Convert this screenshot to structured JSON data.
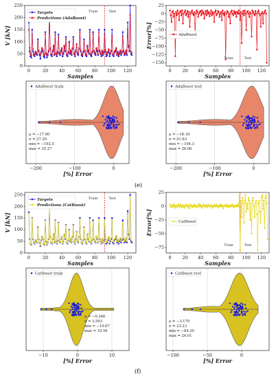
{
  "panel_labels": {
    "e": "(e)",
    "f": "(f)"
  },
  "chart_data": [
    {
      "id": "e_ts",
      "type": "line",
      "xlabel": "Samples",
      "ylabel": "V [kN]",
      "xlim": [
        -5,
        130
      ],
      "ylim": [
        0,
        250
      ],
      "xticks": [
        0,
        20,
        40,
        60,
        80,
        100,
        120
      ],
      "yticks": [
        0,
        50,
        100,
        150,
        200,
        250
      ],
      "legend": [
        "Targets",
        "Predictions (AdaBoost)"
      ],
      "legend_placement": "top-left",
      "split_x": 92,
      "annotations": [
        "Train",
        "Test"
      ],
      "series": [
        {
          "name": "Targets",
          "color": "#1f1fd8",
          "marker": "square",
          "values": [
            180,
            60,
            40,
            35,
            150,
            60,
            45,
            40,
            55,
            50,
            45,
            110,
            60,
            45,
            30,
            55,
            70,
            60,
            40,
            35,
            140,
            50,
            35,
            45,
            60,
            215,
            70,
            45,
            40,
            60,
            80,
            45,
            140,
            50,
            40,
            55,
            130,
            50,
            45,
            60,
            70,
            40,
            50,
            80,
            60,
            120,
            45,
            40,
            55,
            100,
            50,
            60,
            45,
            70,
            120,
            50,
            40,
            60,
            90,
            50,
            45,
            70,
            150,
            60,
            45,
            40,
            55,
            110,
            60,
            45,
            40,
            80,
            60,
            50,
            150,
            45,
            40,
            55,
            140,
            60,
            50,
            45,
            70,
            60,
            45,
            150,
            60,
            50,
            40,
            60,
            45,
            55,
            150,
            60,
            40,
            45,
            55,
            65,
            40,
            50,
            60,
            150,
            45,
            40,
            55,
            60,
            70,
            45,
            55,
            40,
            50,
            60,
            45,
            55,
            140,
            60,
            45,
            50,
            60,
            45,
            180,
            80,
            60,
            260,
            50,
            45
          ]
        },
        {
          "name": "Predictions (AdaBoost)",
          "color": "#e8141d",
          "marker": "circle",
          "values": [
            150,
            75,
            50,
            45,
            130,
            70,
            50,
            45,
            60,
            55,
            50,
            100,
            65,
            50,
            45,
            60,
            75,
            65,
            50,
            45,
            130,
            55,
            45,
            50,
            65,
            200,
            75,
            50,
            45,
            65,
            85,
            50,
            130,
            55,
            45,
            60,
            120,
            55,
            50,
            65,
            75,
            50,
            55,
            85,
            65,
            110,
            50,
            45,
            60,
            95,
            55,
            65,
            50,
            75,
            110,
            55,
            45,
            65,
            90,
            55,
            50,
            75,
            140,
            65,
            50,
            45,
            60,
            100,
            65,
            50,
            45,
            85,
            65,
            55,
            140,
            50,
            45,
            60,
            130,
            65,
            55,
            50,
            75,
            65,
            50,
            140,
            65,
            55,
            45,
            65,
            50,
            60,
            130,
            65,
            50,
            55,
            60,
            70,
            50,
            55,
            65,
            125,
            50,
            45,
            60,
            65,
            75,
            50,
            60,
            45,
            55,
            65,
            50,
            60,
            120,
            65,
            50,
            55,
            65,
            50,
            150,
            85,
            65,
            210,
            60,
            55
          ]
        }
      ]
    },
    {
      "id": "e_err",
      "type": "line",
      "xlabel": "Samples",
      "ylabel": "Error[%]",
      "xlim": [
        -5,
        130
      ],
      "ylim": [
        -160,
        25
      ],
      "xticks": [
        0,
        20,
        40,
        60,
        80,
        100,
        120
      ],
      "yticks": [
        -150,
        -125,
        -100,
        -75,
        -50,
        -25,
        0,
        25
      ],
      "legend": [
        "AdaBoost"
      ],
      "legend_placement": "left",
      "split_x": 92,
      "annotations": [
        "Train",
        "Test"
      ],
      "series": [
        {
          "name": "AdaBoost",
          "color": "#e8141d",
          "marker": "square",
          "values": [
            10,
            -5,
            -25,
            5,
            8,
            -10,
            0,
            -130,
            5,
            -5,
            10,
            0,
            -20,
            5,
            8,
            -5,
            10,
            -30,
            0,
            5,
            10,
            -5,
            0,
            8,
            -10,
            5,
            -40,
            0,
            5,
            10,
            0,
            -5,
            5,
            -60,
            0,
            10,
            5,
            -10,
            0,
            5,
            8,
            -5,
            10,
            0,
            5,
            -15,
            0,
            8,
            -5,
            10,
            0,
            5,
            -8,
            0,
            10,
            -5,
            5,
            0,
            -25,
            5,
            10,
            -5,
            0,
            8,
            5,
            -10,
            0,
            5,
            -20,
            10,
            0,
            -5,
            5,
            -140,
            0,
            8,
            5,
            -10,
            0,
            -30,
            5,
            10,
            0,
            -5,
            8,
            0,
            5,
            -10,
            5,
            0,
            10,
            0,
            -20,
            5,
            -90,
            0,
            8,
            -5,
            10,
            0,
            -50,
            5,
            8,
            0,
            -10,
            5,
            0,
            -70,
            10,
            5,
            0,
            -5,
            8,
            0,
            -110,
            5,
            10,
            0,
            -5,
            -40,
            0,
            5,
            -30,
            0,
            5,
            10,
            0,
            -150
          ]
        }
      ]
    },
    {
      "id": "e_vtrain",
      "type": "violin",
      "xlabel": "[%] Error",
      "xlim": [
        -225,
        40
      ],
      "xticks": [
        -200,
        -100,
        0
      ],
      "legend": [
        "AdaBoost train"
      ],
      "legend_placement": "top-left",
      "fill": "#e8866a",
      "stats": [
        "μ = −17.00",
        "σ = 37.30",
        "min = −192.5",
        "max = 25.27"
      ]
    },
    {
      "id": "e_vtest",
      "type": "violin",
      "xlabel": "[%] Error",
      "xlim": [
        -225,
        40
      ],
      "xticks": [
        -200,
        -100,
        0
      ],
      "legend": [
        "AdaBoost test"
      ],
      "legend_placement": "top-left",
      "fill": "#e8866a",
      "stats": [
        "μ = −18.18",
        "σ = 41.63",
        "min = −194.3",
        "max = 26.06"
      ]
    },
    {
      "id": "f_ts",
      "type": "line",
      "xlabel": "Samples",
      "ylabel": "V [kN]",
      "xlim": [
        -5,
        130
      ],
      "ylim": [
        0,
        260
      ],
      "xticks": [
        0,
        20,
        40,
        60,
        80,
        100,
        120
      ],
      "yticks": [
        0,
        50,
        100,
        150,
        200,
        250
      ],
      "legend": [
        "Targets",
        "Predictions (CatBoost)"
      ],
      "legend_placement": "top-left",
      "split_x": 92,
      "annotations": [
        "Train",
        "Test"
      ],
      "series": [
        {
          "name": "Targets",
          "color": "#1f1fd8",
          "marker": "square",
          "values": [
            175,
            60,
            40,
            35,
            150,
            60,
            45,
            40,
            55,
            50,
            45,
            110,
            60,
            45,
            30,
            55,
            70,
            60,
            40,
            35,
            140,
            50,
            35,
            45,
            60,
            200,
            70,
            45,
            40,
            60,
            80,
            45,
            140,
            50,
            40,
            55,
            130,
            50,
            45,
            60,
            70,
            40,
            50,
            80,
            60,
            120,
            45,
            40,
            55,
            100,
            50,
            60,
            45,
            70,
            120,
            50,
            40,
            60,
            90,
            50,
            45,
            70,
            150,
            60,
            45,
            40,
            55,
            110,
            60,
            45,
            40,
            80,
            60,
            50,
            150,
            45,
            40,
            55,
            140,
            60,
            50,
            45,
            70,
            60,
            45,
            150,
            60,
            50,
            40,
            60,
            45,
            55,
            150,
            60,
            40,
            45,
            55,
            65,
            40,
            50,
            60,
            150,
            45,
            40,
            55,
            60,
            70,
            45,
            55,
            40,
            50,
            60,
            45,
            55,
            140,
            60,
            45,
            50,
            60,
            45,
            180,
            80,
            60,
            250,
            50,
            45
          ]
        },
        {
          "name": "Predictions (CatBoost)",
          "color": "#e6da1e",
          "marker": "circle",
          "values": [
            170,
            62,
            42,
            37,
            148,
            62,
            47,
            42,
            57,
            52,
            47,
            108,
            62,
            47,
            33,
            57,
            72,
            62,
            42,
            37,
            138,
            52,
            37,
            47,
            62,
            195,
            72,
            47,
            42,
            62,
            82,
            47,
            138,
            52,
            42,
            57,
            128,
            52,
            47,
            62,
            72,
            42,
            52,
            82,
            62,
            118,
            47,
            42,
            57,
            98,
            52,
            62,
            47,
            72,
            118,
            52,
            42,
            62,
            88,
            52,
            47,
            72,
            145,
            62,
            47,
            42,
            57,
            108,
            62,
            47,
            42,
            82,
            62,
            52,
            145,
            47,
            42,
            57,
            135,
            62,
            52,
            47,
            72,
            62,
            47,
            145,
            62,
            52,
            42,
            62,
            47,
            57,
            140,
            62,
            45,
            50,
            60,
            70,
            45,
            55,
            65,
            140,
            50,
            45,
            60,
            65,
            75,
            50,
            60,
            45,
            55,
            65,
            50,
            60,
            130,
            65,
            50,
            55,
            65,
            50,
            165,
            85,
            65,
            240,
            60,
            50
          ]
        }
      ]
    },
    {
      "id": "f_err",
      "type": "line",
      "xlabel": "Samples",
      "ylabel": "Error[%]",
      "xlim": [
        -5,
        130
      ],
      "ylim": [
        -85,
        25
      ],
      "xticks": [
        0,
        20,
        40,
        60,
        80,
        100,
        120
      ],
      "yticks": [
        -75,
        -50,
        -25,
        0,
        25
      ],
      "legend": [
        "CatBoost"
      ],
      "legend_placement": "left",
      "split_x": 92,
      "annotations": [
        "Train",
        "Test"
      ],
      "series": [
        {
          "name": "CatBoost",
          "color": "#e6da1e",
          "marker": "square",
          "values": [
            3,
            -2,
            0,
            2,
            -1,
            3,
            0,
            -3,
            2,
            0,
            -2,
            4,
            1,
            -1,
            3,
            0,
            -2,
            2,
            0,
            -3,
            1,
            3,
            0,
            -1,
            2,
            -4,
            0,
            3,
            1,
            -2,
            0,
            2,
            -1,
            3,
            0,
            -2,
            1,
            0,
            4,
            -1,
            2,
            0,
            -3,
            1,
            3,
            0,
            -1,
            2,
            0,
            -2,
            3,
            1,
            0,
            -1,
            2,
            0,
            -3,
            1,
            0,
            2,
            -1,
            3,
            0,
            -2,
            1,
            0,
            3,
            -1,
            2,
            0,
            -4,
            1,
            0,
            2,
            -1,
            3,
            0,
            -2,
            1,
            0,
            2,
            -1,
            3,
            0,
            -2,
            1,
            0,
            2,
            -1,
            3,
            0,
            20,
            -80,
            10,
            -20,
            15,
            5,
            -30,
            10,
            20,
            -10,
            5,
            -5,
            15,
            10,
            -25,
            5,
            -50,
            10,
            15,
            0,
            -20,
            5,
            10,
            -15,
            -80,
            5,
            10,
            -10,
            -30,
            15,
            20,
            -5,
            10,
            -40,
            15,
            20,
            5,
            -60
          ]
        }
      ]
    },
    {
      "id": "f_vtrain",
      "type": "violin",
      "xlabel": "[%] Error",
      "xlim": [
        -15,
        15
      ],
      "xticks": [
        -10,
        0,
        10
      ],
      "legend": [
        "CatBoost train"
      ],
      "legend_placement": "top-left",
      "fill": "#d8c222",
      "stats": [
        "μ = −0.346",
        "σ = 3.593",
        "min = −10.67",
        "max = 10.56"
      ]
    },
    {
      "id": "f_vtest",
      "type": "violin",
      "xlabel": "[%] Error",
      "xlim": [
        -110,
        40
      ],
      "xticks": [
        -100,
        -50,
        0
      ],
      "legend": [
        "CatBoost test"
      ],
      "legend_placement": "top-left",
      "fill": "#d8c222",
      "stats": [
        "μ = −3.170",
        "σ = 23.23",
        "min = −84.30",
        "max = 24.01"
      ]
    }
  ]
}
